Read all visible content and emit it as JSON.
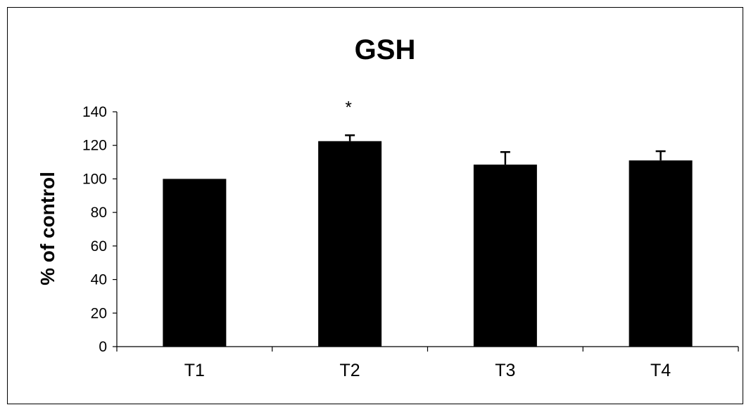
{
  "chart_data": {
    "type": "bar",
    "title": "GSH",
    "xlabel": "",
    "ylabel": "% of control",
    "categories": [
      "T1",
      "T2",
      "T3",
      "T4"
    ],
    "values": [
      100,
      122.5,
      108.5,
      111
    ],
    "error": [
      0,
      3.5,
      7.5,
      5.5
    ],
    "annotations": [
      "",
      "*",
      "",
      ""
    ],
    "ylim": [
      0,
      140
    ],
    "yticks": [
      0,
      20,
      40,
      60,
      80,
      100,
      120,
      140
    ],
    "ytick_labels": [
      "0",
      "20",
      "40",
      "60",
      "80",
      "100",
      "120",
      "140"
    ],
    "grid": false,
    "legend": "none",
    "bar_color": "#000000"
  }
}
